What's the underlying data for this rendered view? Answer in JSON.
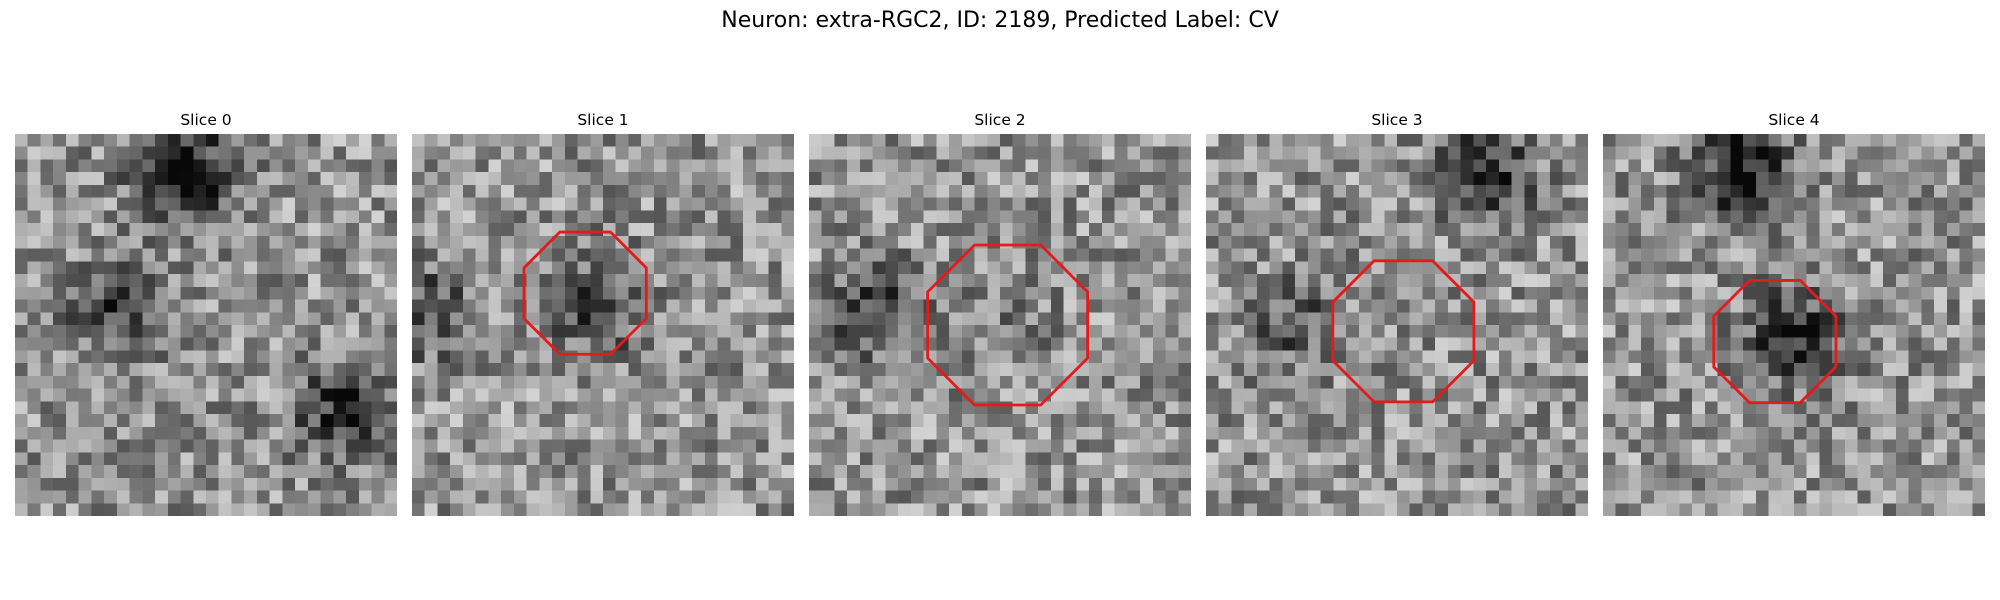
{
  "figure": {
    "title": "Neuron: extra-RGC2, ID: 2189, Predicted Label: CV",
    "colormap": "gray",
    "roi_color": "#e41a1c",
    "grid_size": 30
  },
  "panels": [
    {
      "title": "Slice 0",
      "has_roi": false,
      "dark_spots": [
        [
          3,
          13,
          0.6
        ],
        [
          22,
          26,
          0.45
        ],
        [
          14,
          8,
          0.35
        ]
      ]
    },
    {
      "title": "Slice 1",
      "has_roi": true,
      "roi_center": [
        12.5,
        13.6
      ],
      "roi_radius": 5.2,
      "dark_spots": [
        [
          13.5,
          14.5,
          0.35
        ],
        [
          14,
          1,
          0.3
        ]
      ]
    },
    {
      "title": "Slice 2",
      "has_roi": true,
      "roi_center": [
        15,
        15.6
      ],
      "roi_radius": 6.8,
      "dark_spots": [
        [
          14,
          5,
          0.35
        ],
        [
          15,
          16,
          0.1
        ]
      ]
    },
    {
      "title": "Slice 3",
      "has_roi": true,
      "roi_center": [
        15.5,
        15.5
      ],
      "roi_radius": 6.0,
      "dark_spots": [
        [
          3,
          22,
          0.4
        ],
        [
          15,
          7,
          0.25
        ]
      ]
    },
    {
      "title": "Slice 4",
      "has_roi": true,
      "roi_center": [
        16.3,
        13.5
      ],
      "roi_radius": 5.2,
      "dark_spots": [
        [
          16,
          15,
          0.45
        ],
        [
          3,
          11,
          0.5
        ]
      ]
    }
  ]
}
